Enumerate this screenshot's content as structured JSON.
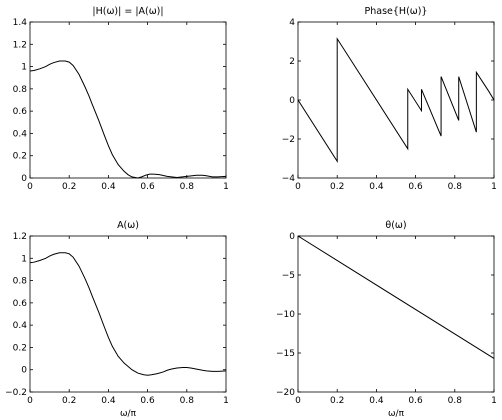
{
  "chart_data": [
    {
      "type": "line",
      "title": "|H(ω)| = |A(ω)|",
      "xlabel": "",
      "ylabel": "",
      "xlim": [
        0,
        1
      ],
      "ylim": [
        0,
        1.4
      ],
      "xticks": [
        0,
        0.2,
        0.4,
        0.6,
        0.8,
        1
      ],
      "yticks": [
        0,
        0.2,
        0.4,
        0.6,
        0.8,
        1,
        1.2,
        1.4
      ],
      "xtick_labels": [
        "0",
        "0.2",
        "0.4",
        "0.6",
        "0.8",
        "1"
      ],
      "ytick_labels": [
        "0",
        "0.2",
        "0.4",
        "0.6",
        "0.8",
        "1",
        "1.2",
        "1.4"
      ],
      "grid": false,
      "series": [
        {
          "x": [
            0,
            0.02,
            0.05,
            0.08,
            0.1,
            0.12,
            0.15,
            0.18,
            0.2,
            0.22,
            0.25,
            0.28,
            0.3,
            0.32,
            0.35,
            0.38,
            0.4,
            0.42,
            0.45,
            0.48,
            0.5,
            0.52,
            0.55,
            0.57,
            0.59,
            0.61,
            0.63,
            0.66,
            0.7,
            0.75,
            0.8,
            0.85,
            0.88,
            0.9,
            0.93,
            0.96,
            1.0
          ],
          "y": [
            0.96,
            0.965,
            0.98,
            1.0,
            1.02,
            1.035,
            1.05,
            1.05,
            1.04,
            1.01,
            0.93,
            0.82,
            0.74,
            0.65,
            0.52,
            0.38,
            0.29,
            0.21,
            0.12,
            0.06,
            0.03,
            0.01,
            0.0,
            0.01,
            0.025,
            0.035,
            0.035,
            0.03,
            0.015,
            0.005,
            0.015,
            0.025,
            0.025,
            0.02,
            0.01,
            0.01,
            0.015
          ]
        }
      ]
    },
    {
      "type": "line",
      "title": "Phase{H(ω)}",
      "xlabel": "",
      "ylabel": "",
      "xlim": [
        0,
        1
      ],
      "ylim": [
        -4,
        4
      ],
      "xticks": [
        0,
        0.2,
        0.4,
        0.6,
        0.8,
        1
      ],
      "yticks": [
        -4,
        -2,
        0,
        2,
        4
      ],
      "xtick_labels": [
        "0",
        "0.2",
        "0.4",
        "0.6",
        "0.8",
        "1"
      ],
      "ytick_labels": [
        "−4",
        "−2",
        "0",
        "2",
        "4"
      ],
      "grid": false,
      "series": [
        {
          "x": [
            0,
            0.2,
            0.2,
            0.56,
            0.56,
            0.63,
            0.63,
            0.73,
            0.73,
            0.82,
            0.82,
            0.91,
            0.91,
            0.975,
            0.975,
            1.0
          ],
          "y": [
            0,
            -3.14,
            3.14,
            -2.5,
            0.55,
            -0.55,
            0.55,
            -1.85,
            1.2,
            -1.05,
            1.2,
            -1.65,
            1.42,
            0.42,
            0.42,
            0.0
          ]
        }
      ]
    },
    {
      "type": "line",
      "title": "A(ω)",
      "xlabel": "ω/π",
      "ylabel": "",
      "xlim": [
        0,
        1
      ],
      "ylim": [
        -0.2,
        1.2
      ],
      "xticks": [
        0,
        0.2,
        0.4,
        0.6,
        0.8,
        1
      ],
      "yticks": [
        -0.2,
        0,
        0.2,
        0.4,
        0.6,
        0.8,
        1,
        1.2
      ],
      "xtick_labels": [
        "0",
        "0.2",
        "0.4",
        "0.6",
        "0.8",
        "1"
      ],
      "ytick_labels": [
        "−0.2",
        "0",
        "0.2",
        "0.4",
        "0.6",
        "0.8",
        "1",
        "1.2"
      ],
      "grid": false,
      "series": [
        {
          "x": [
            0,
            0.02,
            0.05,
            0.08,
            0.1,
            0.12,
            0.15,
            0.18,
            0.2,
            0.22,
            0.25,
            0.28,
            0.3,
            0.32,
            0.35,
            0.38,
            0.4,
            0.42,
            0.45,
            0.48,
            0.5,
            0.52,
            0.55,
            0.58,
            0.6,
            0.62,
            0.65,
            0.68,
            0.7,
            0.72,
            0.75,
            0.78,
            0.8,
            0.82,
            0.85,
            0.88,
            0.9,
            0.93,
            0.96,
            1.0
          ],
          "y": [
            0.96,
            0.965,
            0.98,
            1.0,
            1.02,
            1.035,
            1.05,
            1.05,
            1.04,
            1.01,
            0.93,
            0.82,
            0.74,
            0.65,
            0.52,
            0.38,
            0.29,
            0.21,
            0.12,
            0.06,
            0.03,
            0.0,
            -0.03,
            -0.045,
            -0.05,
            -0.045,
            -0.035,
            -0.02,
            -0.005,
            0.005,
            0.015,
            0.02,
            0.02,
            0.015,
            0.005,
            -0.005,
            -0.01,
            -0.015,
            -0.015,
            -0.01
          ]
        }
      ]
    },
    {
      "type": "line",
      "title": "θ(ω)",
      "xlabel": "ω/π",
      "ylabel": "",
      "xlim": [
        0,
        1
      ],
      "ylim": [
        -20,
        0
      ],
      "xticks": [
        0,
        0.2,
        0.4,
        0.6,
        0.8,
        1
      ],
      "yticks": [
        -20,
        -15,
        -10,
        -5,
        0
      ],
      "xtick_labels": [
        "0",
        "0.2",
        "0.4",
        "0.6",
        "0.8",
        "1"
      ],
      "ytick_labels": [
        "−20",
        "−15",
        "−10",
        "−5",
        "0"
      ],
      "grid": false,
      "series": [
        {
          "x": [
            0,
            1
          ],
          "y": [
            0,
            -15.7
          ]
        }
      ]
    }
  ]
}
